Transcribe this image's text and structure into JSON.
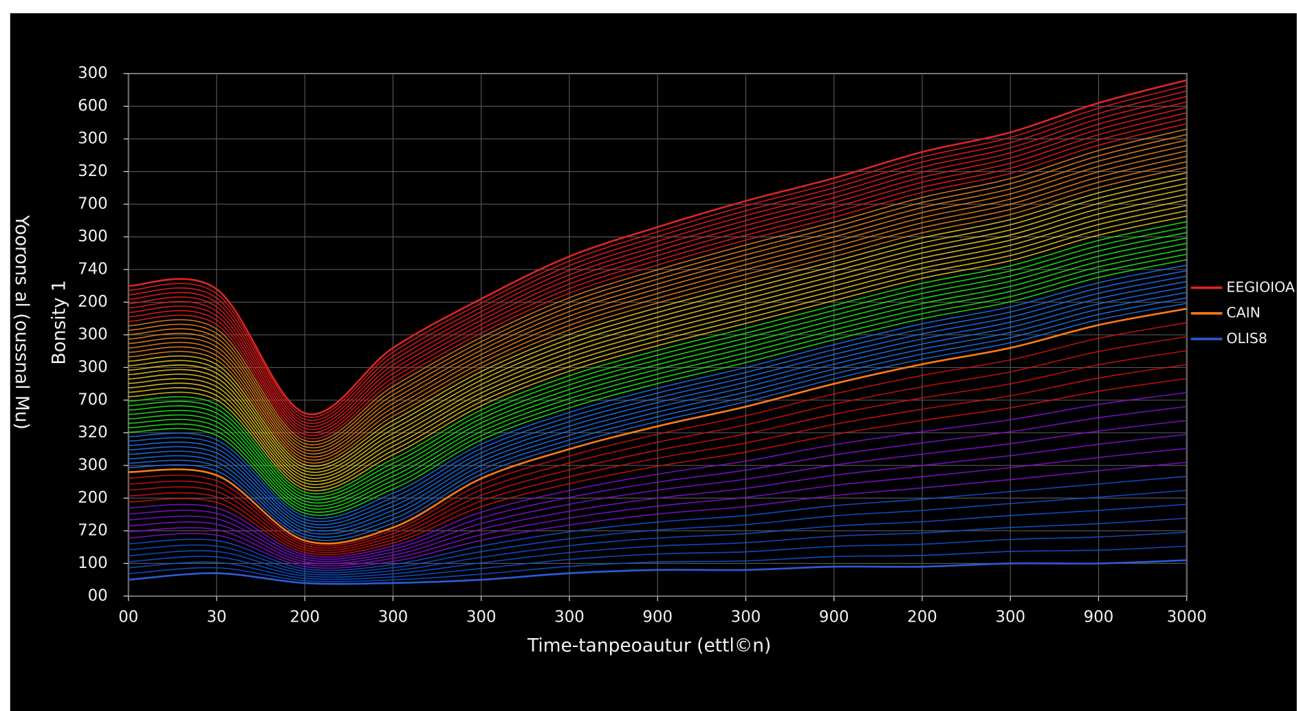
{
  "chart_data": {
    "type": "line",
    "x": [
      0,
      1,
      2,
      3,
      4,
      5,
      6,
      7,
      8,
      9,
      10,
      11,
      12
    ],
    "xlim": [
      0,
      12
    ],
    "xticks": [
      {
        "value": 0,
        "label": "00"
      },
      {
        "value": 1,
        "label": "30"
      },
      {
        "value": 2,
        "label": "200"
      },
      {
        "value": 3,
        "label": "300"
      },
      {
        "value": 4,
        "label": "300"
      },
      {
        "value": 5,
        "label": "300"
      },
      {
        "value": 6,
        "label": "900"
      },
      {
        "value": 7,
        "label": "300"
      },
      {
        "value": 8,
        "label": "900"
      },
      {
        "value": 9,
        "label": "200"
      },
      {
        "value": 10,
        "label": "300"
      },
      {
        "value": 11,
        "label": "900"
      },
      {
        "value": 12,
        "label": "3000"
      }
    ],
    "ylim": [
      0,
      16
    ],
    "yticks": [
      {
        "value": 16,
        "label": "300"
      },
      {
        "value": 15,
        "label": "600"
      },
      {
        "value": 14,
        "label": "300"
      },
      {
        "value": 13,
        "label": "320"
      },
      {
        "value": 12,
        "label": "700"
      },
      {
        "value": 11,
        "label": "300"
      },
      {
        "value": 10,
        "label": "740"
      },
      {
        "value": 9,
        "label": "200"
      },
      {
        "value": 8,
        "label": "300"
      },
      {
        "value": 7,
        "label": "300"
      },
      {
        "value": 6,
        "label": "700"
      },
      {
        "value": 5,
        "label": "320"
      },
      {
        "value": 4,
        "label": "300"
      },
      {
        "value": 3,
        "label": "200"
      },
      {
        "value": 2,
        "label": "720"
      },
      {
        "value": 1,
        "label": "100"
      },
      {
        "value": 0,
        "label": "00"
      }
    ],
    "grid": true,
    "x_label": "Time-tanpeoautur (ettl©n)",
    "y_label": "Yoorons al (oussnal Mu)",
    "annotation": "Bonsity 1",
    "legend": "right",
    "series": [
      {
        "name": "EEGIOIOA",
        "color": "#e02424",
        "values": [
          9.5,
          9.4,
          5.6,
          7.6,
          9.1,
          10.4,
          11.3,
          12.1,
          12.8,
          13.6,
          14.2,
          15.1,
          15.8
        ]
      },
      {
        "name": "CAIN",
        "color": "#ff7a1a",
        "values": [
          3.8,
          3.7,
          1.7,
          2.1,
          3.6,
          4.5,
          5.2,
          5.8,
          6.5,
          7.1,
          7.6,
          8.3,
          8.8
        ]
      },
      {
        "name": "OLIS8",
        "color": "#2a5bd7",
        "values": [
          0.5,
          0.7,
          0.4,
          0.4,
          0.5,
          0.7,
          0.8,
          0.8,
          0.9,
          0.9,
          1.0,
          1.0,
          1.1
        ]
      }
    ]
  }
}
